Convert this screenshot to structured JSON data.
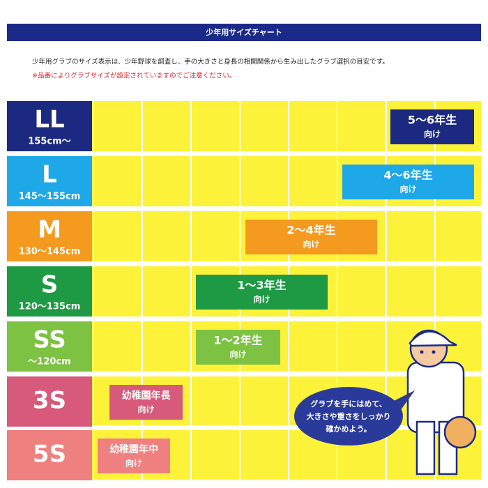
{
  "header": {
    "title": "少年用サイズチャート"
  },
  "description": {
    "lines": [
      "少年用グラブのサイズ表示は、少年野球を調査し、手の大きさと身長の相関関係から生み出したグラブ選択の目安です。",
      "※品番によりグラブサイズが設定されていますのでご注意ください。"
    ]
  },
  "rows": [
    {
      "size": "LL",
      "height": "155cm〜",
      "grade": "5〜6年生",
      "suffix": "向け"
    },
    {
      "size": "L",
      "height": "145〜155cm",
      "grade": "4〜6年生",
      "suffix": "向け"
    },
    {
      "size": "M",
      "height": "130〜145cm",
      "grade": "2〜4年生",
      "suffix": "向け"
    },
    {
      "size": "S",
      "height": "120〜135cm",
      "grade": "1〜3年生",
      "suffix": "向け"
    },
    {
      "size": "SS",
      "height": "〜120cm",
      "grade": "1〜2年生",
      "suffix": "向け"
    },
    {
      "size": "3S",
      "grade": "幼稚園年長",
      "suffix": "向け"
    },
    {
      "size": "5S",
      "grade": "幼稚園年中",
      "suffix": "向け"
    }
  ],
  "bubble": {
    "lines": [
      "グラブを手にはめて、",
      "大きさや重さをしっかり",
      "確かめよう。"
    ]
  }
}
